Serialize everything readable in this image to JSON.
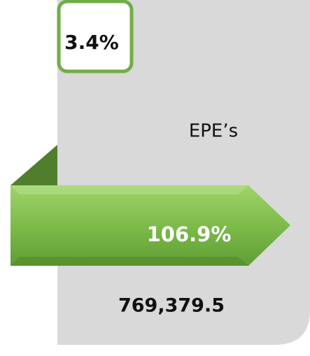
{
  "badge": {
    "text": "3.4%"
  },
  "label": "EPE’s",
  "arrow": {
    "text": "106.9%"
  },
  "total": "769,379.5"
}
